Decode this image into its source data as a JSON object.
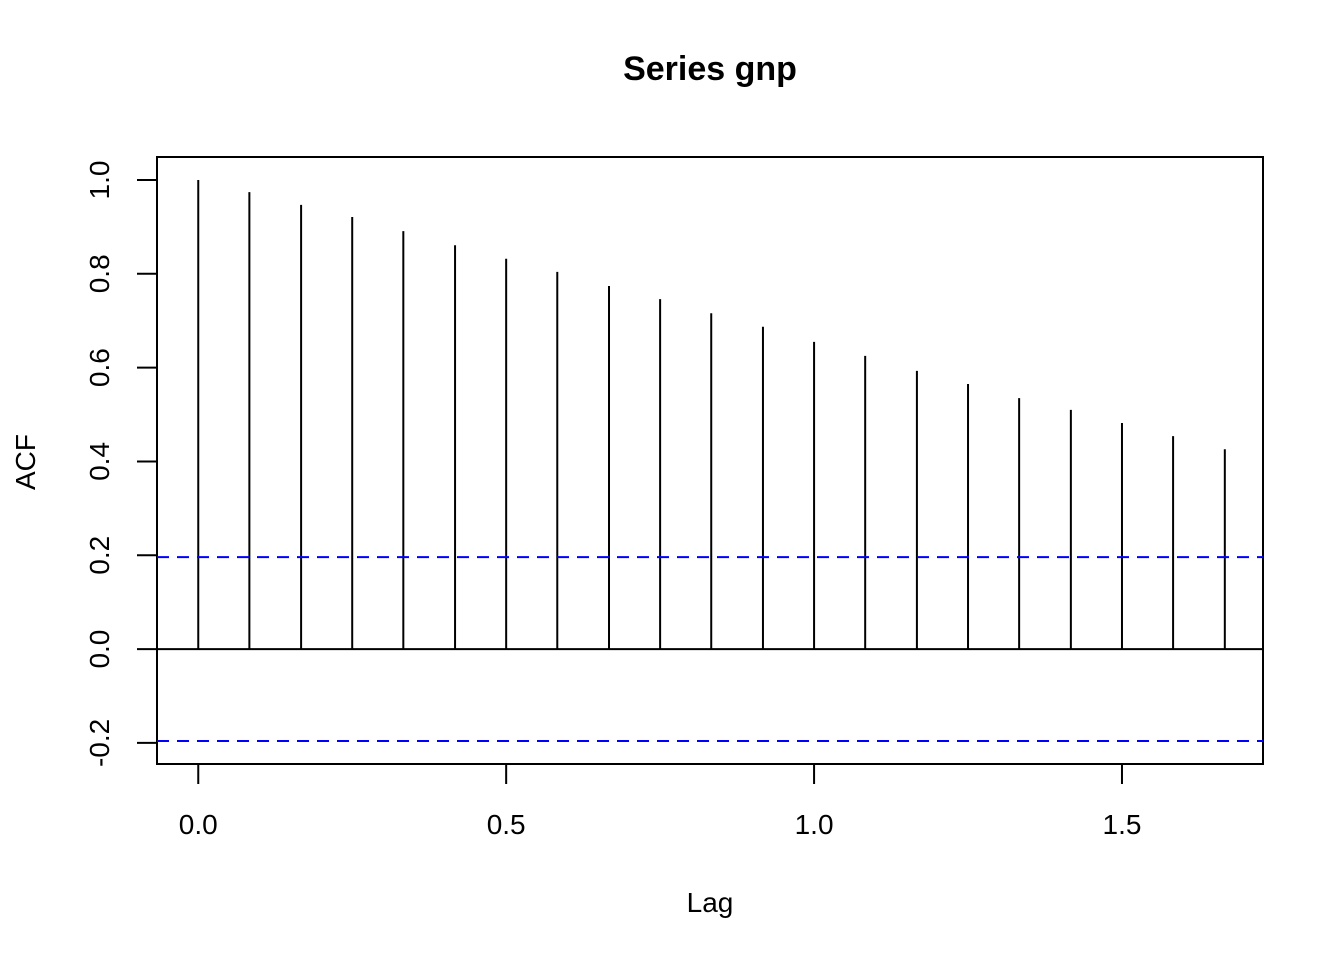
{
  "chart_data": {
    "type": "acf",
    "title": "Series  gnp",
    "xlabel": "Lag",
    "ylabel": "ACF",
    "x": [
      0,
      0.083,
      0.167,
      0.25,
      0.333,
      0.417,
      0.5,
      0.583,
      0.667,
      0.75,
      0.833,
      0.917,
      1.0,
      1.083,
      1.167,
      1.25,
      1.333,
      1.417,
      1.5,
      1.583,
      1.667
    ],
    "values": [
      1.0,
      0.974,
      0.947,
      0.921,
      0.891,
      0.861,
      0.832,
      0.804,
      0.774,
      0.746,
      0.716,
      0.687,
      0.655,
      0.625,
      0.593,
      0.565,
      0.535,
      0.51,
      0.482,
      0.454,
      0.426
    ],
    "color": "#000000",
    "ci_lines": [
      0.196,
      -0.196
    ],
    "ci_color": "#0000ff",
    "xlim": [
      -0.067,
      1.729
    ],
    "ylim": [
      -0.245,
      1.049
    ],
    "xticks": [
      {
        "value": 0,
        "label": "0.0"
      },
      0.5,
      {
        "value": 1,
        "label": "1.0"
      },
      1.5
    ],
    "yticks": [
      -0.2,
      {
        "value": 0,
        "label": "0.0"
      },
      0.2,
      0.4,
      0.6,
      0.8,
      {
        "value": 1,
        "label": "1.0"
      }
    ]
  }
}
